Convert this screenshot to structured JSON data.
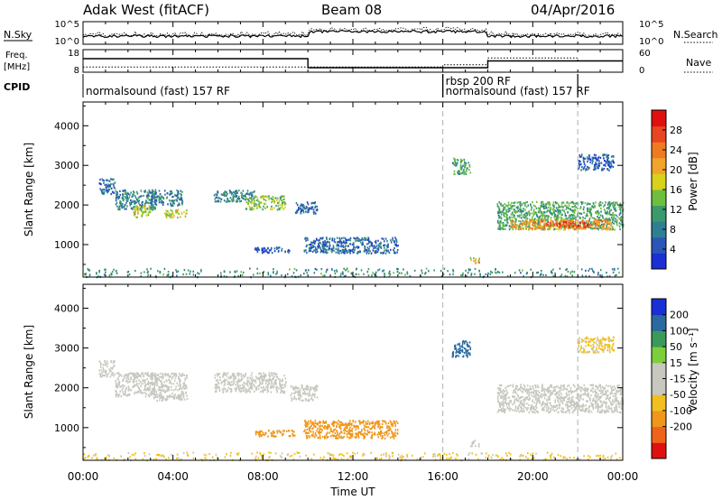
{
  "header": {
    "station": "Adak West (fitACF)",
    "beam": "Beam 08",
    "date": "04/Apr/2016"
  },
  "colors": {
    "power_scale": [
      "#1a2fd6",
      "#2a56b8",
      "#2f7f92",
      "#3a9a6c",
      "#6fbf3e",
      "#d8d21a",
      "#f0a52a",
      "#f07a1f",
      "#e84520",
      "#e01010"
    ],
    "velocity_scale": [
      "#1a2fd6",
      "#2a6aa0",
      "#3a9a5a",
      "#7ccf3a",
      "#c8c8c0",
      "#c8c8c0",
      "#f0c020",
      "#f0961a",
      "#f0641a",
      "#e01010"
    ]
  },
  "chart_data": [
    {
      "id": "nsky-nsearch",
      "type": "line",
      "left_label": "N.Sky",
      "right_label": "N.Search",
      "left_ticks": [
        "10^5",
        "10^0"
      ],
      "right_ticks": [
        "10^5",
        "10^0"
      ]
    },
    {
      "id": "freq-nave",
      "type": "line",
      "left_label": "Freq.",
      "left_unit": "[MHz]",
      "left_ticks": [
        "18",
        "8"
      ],
      "right_label": "Nave",
      "right_ticks": [
        "60",
        "0"
      ],
      "freq_series": {
        "x": [
          0,
          10,
          10,
          18,
          18,
          24
        ],
        "y": [
          14,
          14,
          10,
          10,
          13,
          13
        ]
      },
      "nave_series": {
        "x": [
          0,
          16,
          16,
          18,
          18,
          22,
          22,
          24
        ],
        "y": [
          14,
          14,
          20,
          20,
          38,
          38,
          30,
          30
        ]
      },
      "freq_ylim": [
        8,
        18
      ],
      "nave_ylim": [
        0,
        60
      ]
    },
    {
      "id": "cpid",
      "type": "table",
      "label": "CPID",
      "segments": [
        {
          "start": 0,
          "end": 16,
          "name": "normalsound (fast) 157 RF",
          "row": "lower"
        },
        {
          "start": 16,
          "end": 22,
          "name": "rbsp 200 RF",
          "row": "upper"
        },
        {
          "start": 16,
          "end": 22,
          "name": "normalsound (fast) 157 RF",
          "row": "lower"
        }
      ]
    },
    {
      "id": "power",
      "type": "scatter",
      "ylabel": "Slant Range [km]",
      "yticks": [
        1000,
        2000,
        3000,
        4000
      ],
      "ylim": [
        180,
        4600
      ],
      "xlim": [
        0,
        24
      ],
      "colorbar_label": "Power [dB]",
      "colorbar_ticks": [
        4,
        8,
        12,
        16,
        20,
        24,
        28
      ],
      "colorbar_range": [
        0,
        32
      ],
      "scatter_bands": [
        {
          "t0": 0.7,
          "t1": 1.4,
          "r0": 2300,
          "r1": 2700,
          "value": 6
        },
        {
          "t0": 1.4,
          "t1": 3.2,
          "r0": 1900,
          "r1": 2400,
          "value": 9
        },
        {
          "t0": 2.2,
          "t1": 3.0,
          "r0": 1700,
          "r1": 2000,
          "value": 16
        },
        {
          "t0": 3.0,
          "t1": 4.4,
          "r0": 2000,
          "r1": 2400,
          "value": 8
        },
        {
          "t0": 3.6,
          "t1": 4.6,
          "r0": 1700,
          "r1": 1900,
          "value": 17
        },
        {
          "t0": 5.8,
          "t1": 7.6,
          "r0": 2100,
          "r1": 2400,
          "value": 9
        },
        {
          "t0": 7.2,
          "t1": 9.0,
          "r0": 1900,
          "r1": 2250,
          "value": 15
        },
        {
          "t0": 9.4,
          "t1": 10.4,
          "r0": 1800,
          "r1": 2100,
          "value": 6
        },
        {
          "t0": 7.6,
          "t1": 9.2,
          "r0": 800,
          "r1": 950,
          "value": 5
        },
        {
          "t0": 9.8,
          "t1": 14.0,
          "r0": 800,
          "r1": 1200,
          "value": 6
        },
        {
          "t0": 18.4,
          "t1": 24.0,
          "r0": 1400,
          "r1": 2100,
          "value": 12
        },
        {
          "t0": 19.0,
          "t1": 23.5,
          "r0": 1400,
          "r1": 1650,
          "value": 22
        },
        {
          "t0": 20.5,
          "t1": 22.5,
          "r0": 1450,
          "r1": 1600,
          "value": 28
        },
        {
          "t0": 0.0,
          "t1": 24.0,
          "r0": 200,
          "r1": 420,
          "value": 10
        },
        {
          "t0": 17.2,
          "t1": 17.6,
          "r0": 550,
          "r1": 700,
          "value": 19
        },
        {
          "t0": 16.4,
          "t1": 17.2,
          "r0": 2800,
          "r1": 3200,
          "value": 12
        },
        {
          "t0": 22.0,
          "t1": 23.6,
          "r0": 2900,
          "r1": 3300,
          "value": 5
        }
      ]
    },
    {
      "id": "velocity",
      "type": "scatter",
      "ylabel": "Slant Range [km]",
      "yticks": [
        1000,
        2000,
        3000,
        4000
      ],
      "ylim": [
        180,
        4600
      ],
      "xlim": [
        0,
        24
      ],
      "xlabel": "Time UT",
      "xtick_labels": [
        "00:00",
        "04:00",
        "08:00",
        "12:00",
        "16:00",
        "20:00",
        "00:00"
      ],
      "xtick_hours": [
        0,
        4,
        8,
        12,
        16,
        20,
        24
      ],
      "colorbar_label": "Velocity [m s⁻¹]",
      "colorbar_ticks": [
        200,
        100,
        50,
        15,
        -15,
        -50,
        -100,
        -200
      ],
      "dashed_hours": [
        16,
        22
      ],
      "scatter_bands": [
        {
          "t0": 0.7,
          "t1": 1.4,
          "r0": 2300,
          "r1": 2700,
          "value": 0
        },
        {
          "t0": 1.4,
          "t1": 3.2,
          "r0": 1800,
          "r1": 2400,
          "value": 0
        },
        {
          "t0": 3.0,
          "t1": 4.6,
          "r0": 1700,
          "r1": 2400,
          "value": 0
        },
        {
          "t0": 5.8,
          "t1": 9.0,
          "r0": 1900,
          "r1": 2400,
          "value": 0
        },
        {
          "t0": 9.2,
          "t1": 10.4,
          "r0": 1700,
          "r1": 2100,
          "value": 0
        },
        {
          "t0": 7.6,
          "t1": 9.4,
          "r0": 800,
          "r1": 950,
          "value": -60
        },
        {
          "t0": 9.8,
          "t1": 14.0,
          "r0": 750,
          "r1": 1200,
          "value": -70
        },
        {
          "t0": 18.4,
          "t1": 24.0,
          "r0": 1400,
          "r1": 2100,
          "value": 0
        },
        {
          "t0": 0.0,
          "t1": 24.0,
          "r0": 200,
          "r1": 400,
          "value": -20
        },
        {
          "t0": 17.2,
          "t1": 17.6,
          "r0": 550,
          "r1": 700,
          "value": 0
        },
        {
          "t0": 16.4,
          "t1": 17.2,
          "r0": 2800,
          "r1": 3200,
          "value": 120
        },
        {
          "t0": 22.0,
          "t1": 23.6,
          "r0": 2900,
          "r1": 3300,
          "value": -20
        }
      ]
    }
  ]
}
